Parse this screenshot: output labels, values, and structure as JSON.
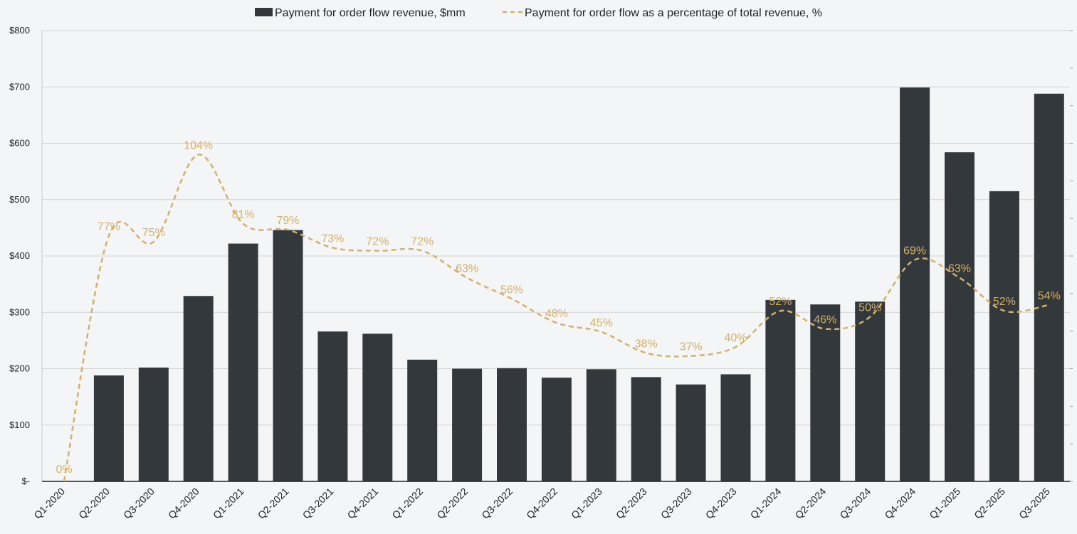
{
  "chart_data": {
    "type": "bar",
    "title": "",
    "xlabel": "",
    "ylabel": "",
    "ylim": [
      0,
      800
    ],
    "y_ticks": [
      {
        "value": 0,
        "label": "$-"
      },
      {
        "value": 100,
        "label": "$100"
      },
      {
        "value": 200,
        "label": "$200"
      },
      {
        "value": 300,
        "label": "$300"
      },
      {
        "value": 400,
        "label": "$400"
      },
      {
        "value": 500,
        "label": "$500"
      },
      {
        "value": 600,
        "label": "$600"
      },
      {
        "value": 700,
        "label": "$700"
      },
      {
        "value": 800,
        "label": "$800"
      }
    ],
    "categories": [
      "Q1-2020",
      "Q2-2020",
      "Q3-2020",
      "Q4-2020",
      "Q1-2021",
      "Q2-2021",
      "Q3-2021",
      "Q4-2021",
      "Q1-2022",
      "Q2-2022",
      "Q3-2022",
      "Q4-2022",
      "Q1-2023",
      "Q2-2023",
      "Q3-2023",
      "Q4-2023",
      "Q1-2024",
      "Q2-2024",
      "Q3-2024",
      "Q4-2024",
      "Q1-2025",
      "Q2-2025",
      "Q3-2025"
    ],
    "legend": {
      "position": "top-center",
      "bar_label": "Payment for order flow revenue, $mm",
      "line_label": "Payment for order flow as a percentage of total revenue, %"
    },
    "series": [
      {
        "name": "Payment for order flow revenue, $mm",
        "type": "bar",
        "color": "#32383b",
        "values": [
          0,
          188,
          202,
          329,
          422,
          446,
          266,
          262,
          216,
          200,
          201,
          184,
          199,
          185,
          172,
          190,
          322,
          314,
          319,
          699,
          584,
          515,
          688
        ]
      },
      {
        "name": "Payment for order flow as a percentage of total revenue, %",
        "type": "line",
        "style": "dashed",
        "color": "#d4b06a",
        "values": [
          0,
          77,
          75,
          104,
          81,
          79,
          73,
          72,
          72,
          63,
          56,
          48,
          45,
          38,
          37,
          40,
          52,
          46,
          50,
          69,
          63,
          52,
          54
        ],
        "labels": [
          "0%",
          "77%",
          "75%",
          "104%",
          "81%",
          "79%",
          "73%",
          "72%",
          "72%",
          "63%",
          "56%",
          "48%",
          "45%",
          "38%",
          "37%",
          "40%",
          "52%",
          "46%",
          "50%",
          "69%",
          "63%",
          "52%",
          "54%"
        ]
      }
    ]
  }
}
